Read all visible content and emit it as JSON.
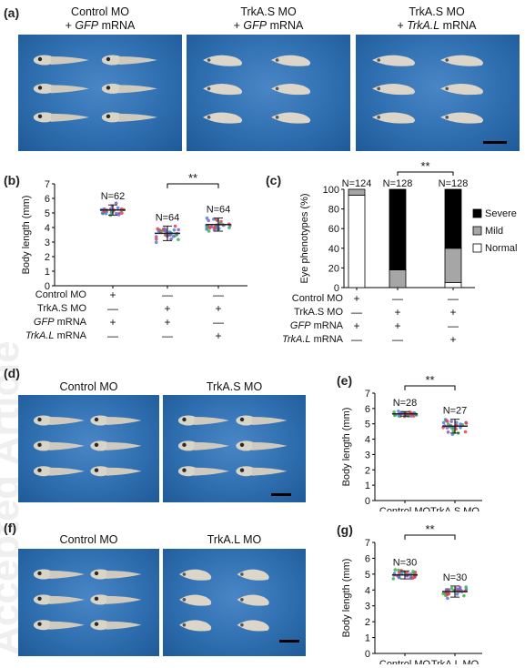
{
  "panels": {
    "a": {
      "label": "(a)",
      "captions": [
        {
          "line1": "Control MO",
          "line2_prefix": "+ ",
          "line2_italic": "GFP",
          "line2_suffix": " mRNA"
        },
        {
          "line1": "TrkA.S MO",
          "line2_prefix": "+ ",
          "line2_italic": "GFP",
          "line2_suffix": " mRNA"
        },
        {
          "line1": "TrkA.S MO",
          "line2_prefix": "+ ",
          "line2_italic": "TrkA.L",
          "line2_suffix": " mRNA"
        }
      ]
    },
    "b": {
      "label": "(b)"
    },
    "c": {
      "label": "(c)"
    },
    "d": {
      "label": "(d)",
      "captions": [
        "Control MO",
        "TrkA.S MO"
      ]
    },
    "e": {
      "label": "(e)"
    },
    "f": {
      "label": "(f)",
      "captions": [
        "Control MO",
        "TrkA.L MO"
      ]
    },
    "g": {
      "label": "(g)"
    }
  },
  "conditions": {
    "rows": [
      {
        "label": "Control MO",
        "italic_part": "",
        "suffix": "",
        "marks": [
          "+",
          "—",
          "—"
        ]
      },
      {
        "label": "TrkA.S MO",
        "italic_part": "",
        "suffix": "",
        "marks": [
          "—",
          "+",
          "+"
        ]
      },
      {
        "label": "",
        "italic_part": "GFP",
        "suffix": " mRNA",
        "marks": [
          "+",
          "+",
          "—"
        ]
      },
      {
        "label": "",
        "italic_part": "TrkA.L",
        "suffix": " mRNA",
        "marks": [
          "—",
          "—",
          "+"
        ]
      }
    ]
  },
  "chart_data": [
    {
      "id": "b",
      "type": "scatter",
      "ylabel": "Body length (mm)",
      "ylim": [
        0,
        7
      ],
      "yticks": [
        "0",
        "1",
        "2",
        "3",
        "4",
        "5",
        "6",
        "7"
      ],
      "groups": [
        {
          "n_label": "N=62",
          "mean": 5.2,
          "sd": 0.35
        },
        {
          "n_label": "N=64",
          "mean": 3.6,
          "sd": 0.5
        },
        {
          "n_label": "N=64",
          "mean": 4.2,
          "sd": 0.45
        }
      ],
      "significance": {
        "from": 1,
        "to": 2,
        "label": "**"
      }
    },
    {
      "id": "c",
      "type": "bar",
      "stacked": true,
      "ylabel": "Eye phenotypes (%)",
      "ylim": [
        0,
        100
      ],
      "yticks": [
        "0",
        "20",
        "40",
        "60",
        "80",
        "100"
      ],
      "n_labels": [
        "N=124",
        "N=128",
        "N=128"
      ],
      "series": [
        {
          "name": "Normal",
          "color": "#ffffff",
          "values": [
            94,
            0,
            5
          ]
        },
        {
          "name": "Mild",
          "color": "#a6a6a6",
          "values": [
            6,
            18,
            35
          ]
        },
        {
          "name": "Severe",
          "color": "#000000",
          "values": [
            0,
            82,
            60
          ]
        }
      ],
      "legend": [
        "Severe",
        "Mild",
        "Normal"
      ],
      "significance": {
        "from": 1,
        "to": 2,
        "label": "**"
      }
    },
    {
      "id": "e",
      "type": "scatter",
      "ylabel": "Body length (mm)",
      "ylim": [
        0,
        7
      ],
      "yticks": [
        "0",
        "1",
        "2",
        "3",
        "4",
        "5",
        "6",
        "7"
      ],
      "categories": [
        "Control MO",
        "TrkA.S MO"
      ],
      "groups": [
        {
          "n_label": "N=28",
          "mean": 5.65,
          "sd": 0.15
        },
        {
          "n_label": "N=27",
          "mean": 4.85,
          "sd": 0.45
        }
      ],
      "significance": {
        "from": 0,
        "to": 1,
        "label": "**"
      }
    },
    {
      "id": "g",
      "type": "scatter",
      "ylabel": "Body length (mm)",
      "ylim": [
        0,
        7
      ],
      "yticks": [
        "0",
        "1",
        "2",
        "3",
        "4",
        "5",
        "6",
        "7"
      ],
      "categories": [
        "Control MO",
        "TrkA.L MO"
      ],
      "groups": [
        {
          "n_label": "N=30",
          "mean": 4.95,
          "sd": 0.25
        },
        {
          "n_label": "N=30",
          "mean": 3.9,
          "sd": 0.35
        }
      ],
      "significance": {
        "from": 0,
        "to": 1,
        "label": "**"
      }
    }
  ],
  "colors": {
    "photo_bg": "#2f6fb0",
    "dot_blue": "#4a7fd8",
    "dot_red": "#e0414a",
    "dot_green": "#3db24a",
    "dot_purple": "#8a5cc8",
    "mean_line": "#222222"
  },
  "watermark_text": "Accepted Article"
}
